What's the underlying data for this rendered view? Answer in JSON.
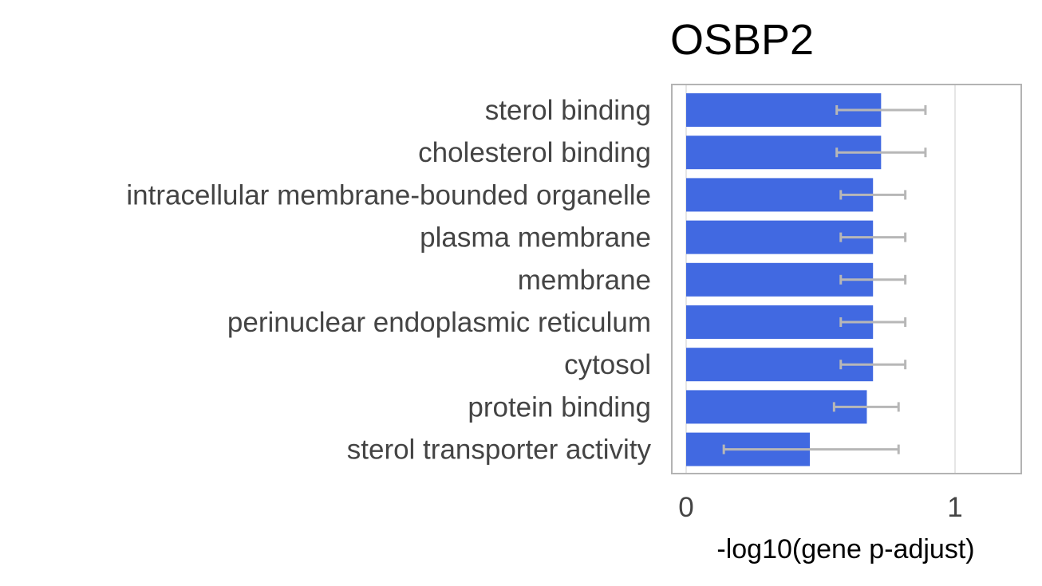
{
  "chart_data": {
    "type": "bar",
    "orientation": "horizontal",
    "title": "OSBP2",
    "xlabel": "-log10(gene p-adjust)",
    "ylabel": "",
    "xlim": [
      -0.05,
      1.25
    ],
    "xticks": [
      0,
      1
    ],
    "grid": true,
    "categories": [
      "sterol binding",
      "cholesterol binding",
      "intracellular membrane-bounded organelle",
      "plasma membrane",
      "membrane",
      "perinuclear endoplasmic reticulum",
      "cytosol",
      "protein binding",
      "sterol transporter activity"
    ],
    "values": [
      0.725,
      0.725,
      0.695,
      0.695,
      0.695,
      0.695,
      0.695,
      0.672,
      0.46
    ],
    "error_low": [
      0.56,
      0.56,
      0.575,
      0.575,
      0.575,
      0.575,
      0.575,
      0.55,
      0.14
    ],
    "error_high": [
      0.89,
      0.89,
      0.815,
      0.815,
      0.815,
      0.815,
      0.815,
      0.79,
      0.79
    ],
    "colors": {
      "bar": "#4169E1",
      "error": "#B7B7B7",
      "frame": "#B3B3B3",
      "grid": "#DDDDDD",
      "label": "#444444"
    }
  }
}
